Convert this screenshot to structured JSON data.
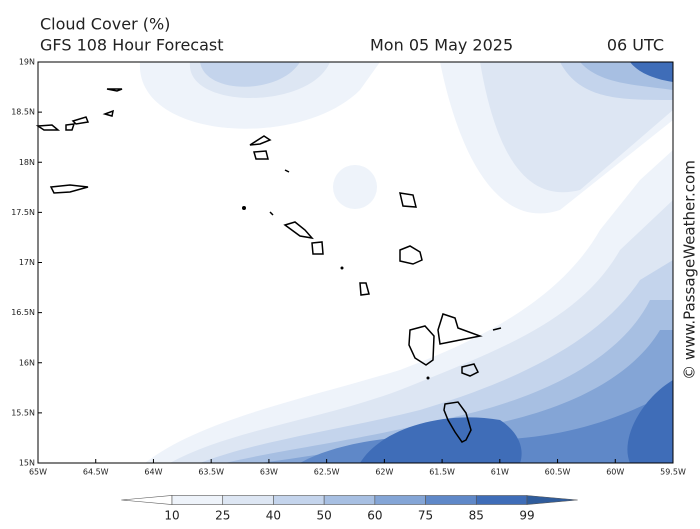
{
  "header": {
    "title": "Cloud Cover (%)",
    "subtitle": "GFS 108 Hour Forecast",
    "date": "Mon 05 May 2025",
    "time": "06 UTC"
  },
  "watermark": "© www.PassageWeather.com",
  "map": {
    "lon_ticks": [
      {
        "value": -65,
        "label": "65W"
      },
      {
        "value": -64.5,
        "label": "64.5W"
      },
      {
        "value": -64,
        "label": "64W"
      },
      {
        "value": -63.5,
        "label": "63.5W"
      },
      {
        "value": -63,
        "label": "63W"
      },
      {
        "value": -62.5,
        "label": "62.5W"
      },
      {
        "value": -62,
        "label": "62W"
      },
      {
        "value": -61.5,
        "label": "61.5W"
      },
      {
        "value": -61,
        "label": "61W"
      },
      {
        "value": -60.5,
        "label": "60.5W"
      },
      {
        "value": -60,
        "label": "60W"
      },
      {
        "value": -59.5,
        "label": "59.5W"
      }
    ],
    "lat_ticks": [
      {
        "value": 15,
        "label": "15N"
      },
      {
        "value": 15.5,
        "label": "15.5N"
      },
      {
        "value": 16,
        "label": "16N"
      },
      {
        "value": 16.5,
        "label": "16.5N"
      },
      {
        "value": 17,
        "label": "17N"
      },
      {
        "value": 17.5,
        "label": "17.5N"
      },
      {
        "value": 18,
        "label": "18N"
      },
      {
        "value": 18.5,
        "label": "18.5N"
      },
      {
        "value": 19,
        "label": "19N"
      }
    ],
    "lonlim": [
      -65,
      -59.5
    ],
    "latlim": [
      15,
      19
    ]
  },
  "colorbar": {
    "levels": [
      10,
      25,
      40,
      50,
      60,
      75,
      85,
      99
    ],
    "colors": [
      "#ffffff",
      "#eef3fa",
      "#dde6f3",
      "#c4d4ec",
      "#a7bfe2",
      "#84a5d6",
      "#5f88c8",
      "#3f6db8",
      "#2f5c9c"
    ]
  }
}
